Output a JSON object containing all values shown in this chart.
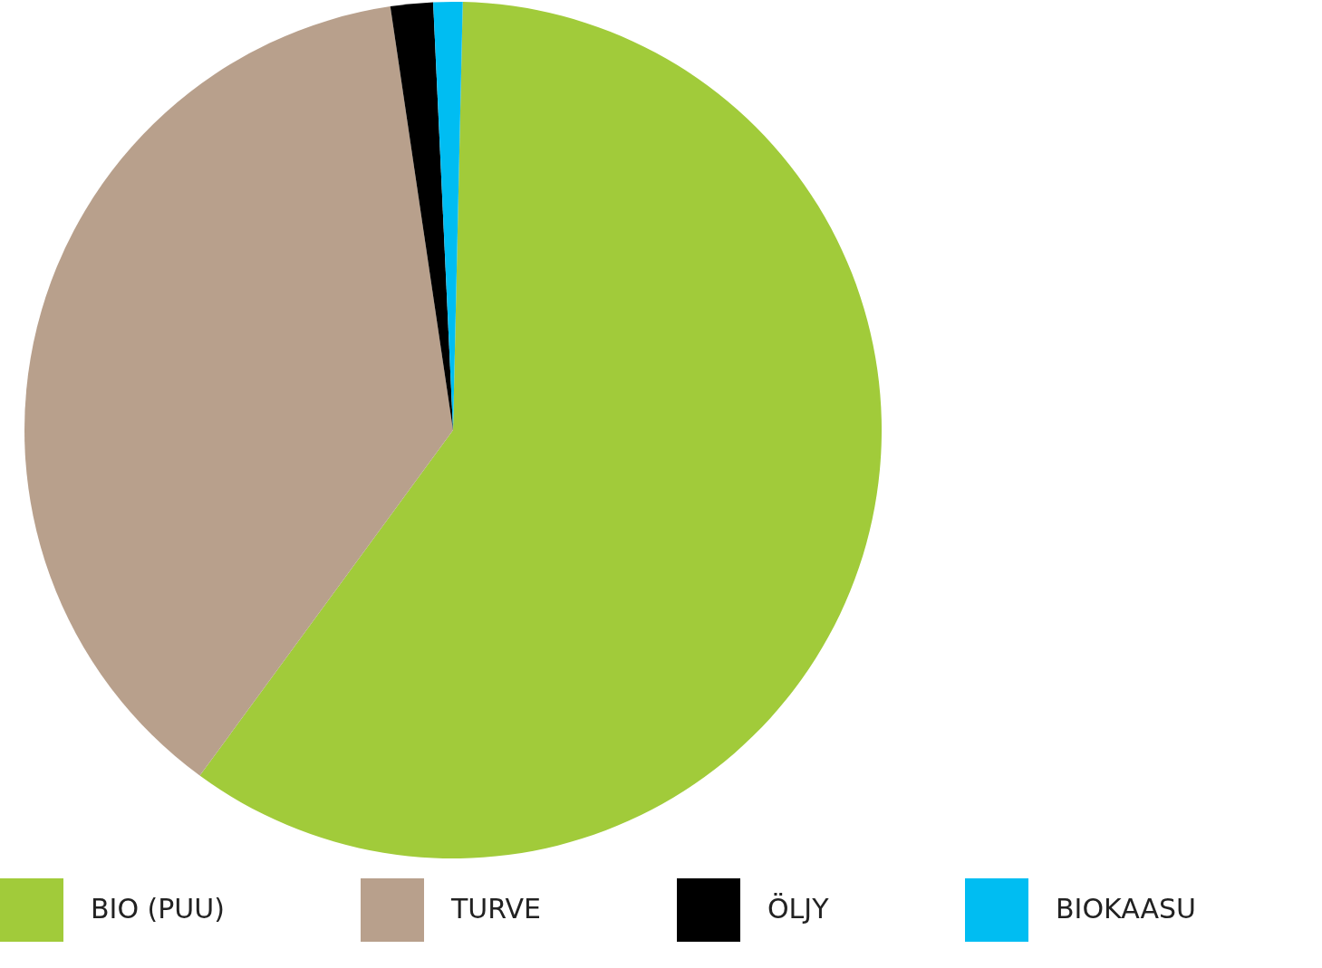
{
  "chart_data": {
    "type": "pie",
    "categories": [
      "BIO (PUU)",
      "TURVE",
      "ÖLJY",
      "BIOKAASU"
    ],
    "values": [
      59.7,
      37.6,
      1.6,
      1.1
    ],
    "colors": [
      "#a1cb3a",
      "#b8a08c",
      "#000000",
      "#00bdf2"
    ],
    "legend": "bottom"
  }
}
